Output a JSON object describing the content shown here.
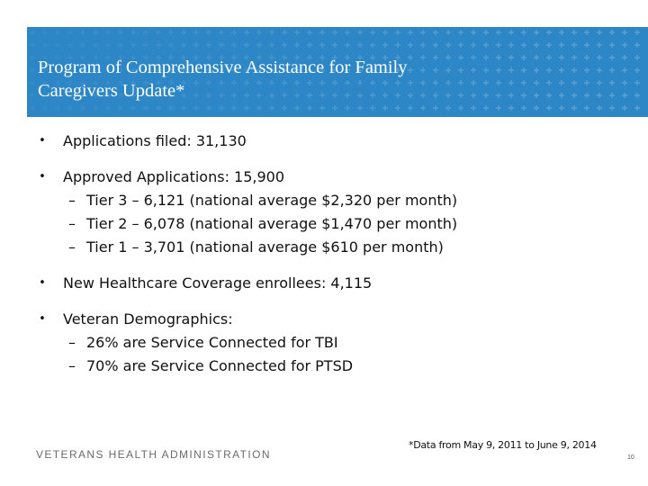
{
  "header": {
    "title_line1": "Program of Comprehensive Assistance for Family",
    "title_line2": "Caregivers Update*",
    "bg_color": "#2d87c6"
  },
  "bullets": [
    {
      "text": "Applications filed:  31,130"
    },
    {
      "text": "Approved Applications:  15,900",
      "sub": [
        "Tier 3 – 6,121 (national average $2,320 per month)",
        "Tier 2 – 6,078 (national average $1,470 per month)",
        "Tier 1 – 3,701 (national average $610 per month)"
      ]
    },
    {
      "text": "New Healthcare Coverage enrollees:  4,115"
    },
    {
      "text": "Veteran Demographics:",
      "sub": [
        "26% are Service Connected for TBI",
        "70% are Service Connected for PTSD"
      ]
    }
  ],
  "bullet_symbol": "•",
  "dash_symbol": "–",
  "footer": {
    "org": "VETERANS HEALTH ADMINISTRATION",
    "footnote": "*Data from May 9, 2011 to June 9, 2014",
    "page_number": "10"
  }
}
